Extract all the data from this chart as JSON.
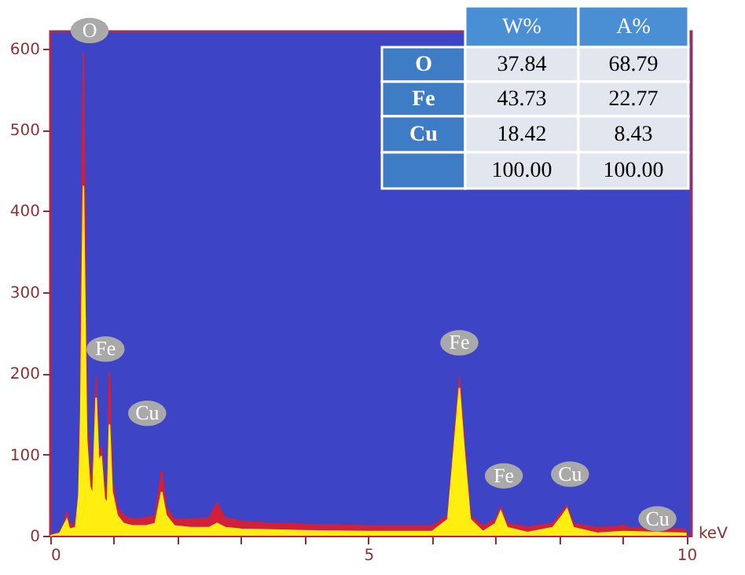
{
  "chart_data": [
    {
      "type": "area",
      "xlabel": "keV",
      "xlim": [
        0,
        10.08
      ],
      "ylim": [
        0,
        621
      ],
      "xticks": [
        0,
        {
          "value": 1,
          "label": null
        },
        {
          "value": 2,
          "label": null
        },
        {
          "value": 3,
          "label": null
        },
        {
          "value": 4,
          "label": null
        },
        5,
        {
          "value": 6,
          "label": null
        },
        {
          "value": 7,
          "label": null
        },
        {
          "value": 8,
          "label": null
        },
        {
          "value": 9,
          "label": null
        },
        10
      ],
      "yticks": [
        0,
        100,
        200,
        300,
        400,
        500,
        600
      ],
      "grid": false,
      "series": [
        {
          "color": "#d0203a",
          "x": [
            0,
            0.15,
            0.22,
            0.26,
            0.3,
            0.38,
            0.44,
            0.47,
            0.5,
            0.52,
            0.54,
            0.57,
            0.62,
            0.67,
            0.72,
            0.76,
            0.8,
            0.85,
            0.9,
            0.93,
            0.97,
            1.05,
            1.15,
            1.3,
            1.5,
            1.65,
            1.75,
            1.82,
            1.95,
            2.2,
            2.5,
            2.62,
            2.75,
            3.0,
            3.5,
            4.0,
            4.5,
            5.0,
            5.5,
            6.0,
            6.25,
            6.35,
            6.43,
            6.5,
            6.6,
            6.8,
            7.0,
            7.08,
            7.18,
            7.5,
            7.9,
            8.05,
            8.12,
            8.22,
            8.6,
            8.9,
            9.0,
            9.1,
            9.5,
            10.0
          ],
          "values": [
            0,
            5,
            15,
            30,
            15,
            12,
            40,
            150,
            420,
            595,
            420,
            150,
            80,
            70,
            195,
            100,
            110,
            60,
            60,
            201,
            70,
            35,
            25,
            20,
            22,
            25,
            80,
            35,
            20,
            20,
            22,
            40,
            22,
            18,
            15,
            14,
            13,
            12,
            12,
            12,
            25,
            120,
            195,
            120,
            25,
            12,
            20,
            35,
            15,
            11,
            15,
            30,
            37,
            15,
            10,
            11,
            13,
            10,
            9,
            8
          ]
        },
        {
          "color": "#ffee10",
          "x": [
            0,
            0.15,
            0.26,
            0.3,
            0.4,
            0.45,
            0.48,
            0.5,
            0.52,
            0.54,
            0.57,
            0.62,
            0.67,
            0.72,
            0.76,
            0.8,
            0.85,
            0.9,
            0.93,
            0.97,
            1.05,
            1.15,
            1.3,
            1.5,
            1.65,
            1.75,
            1.82,
            1.95,
            2.2,
            2.5,
            2.62,
            2.75,
            3.0,
            4.0,
            5.0,
            6.0,
            6.25,
            6.35,
            6.43,
            6.5,
            6.6,
            6.8,
            7.0,
            7.08,
            7.18,
            7.5,
            7.9,
            8.05,
            8.12,
            8.22,
            8.6,
            9.0,
            10.0
          ],
          "values": [
            0,
            3,
            20,
            8,
            10,
            50,
            150,
            300,
            431,
            300,
            120,
            60,
            50,
            170,
            90,
            98,
            45,
            40,
            137,
            55,
            25,
            15,
            12,
            12,
            15,
            54,
            25,
            12,
            10,
            10,
            15,
            10,
            8,
            6,
            5,
            5,
            20,
            110,
            182,
            110,
            20,
            5,
            15,
            30,
            10,
            4,
            10,
            25,
            33,
            10,
            3,
            5,
            3
          ]
        }
      ],
      "annotations": [
        {
          "text": "O",
          "x": 0.52,
          "y": 595
        },
        {
          "text": "Fe",
          "x": 0.72,
          "y": 195
        },
        {
          "text": "Cu",
          "x": 0.93,
          "y": 201
        },
        {
          "text": "Fe",
          "x": 6.43,
          "y": 195
        },
        {
          "text": "Fe",
          "x": 7.08,
          "y": 35
        },
        {
          "text": "Cu",
          "x": 8.12,
          "y": 37
        },
        {
          "text": "Cu",
          "x": 9.0,
          "y": 13
        }
      ]
    },
    {
      "type": "other",
      "categories": [
        "O",
        "Fe",
        "Cu"
      ],
      "data_labels": true,
      "totals": [
        "100.00",
        "100.00"
      ],
      "series": [
        {
          "name": "W%",
          "color": "#e1e6ef",
          "values": [
            37.84,
            43.73,
            18.42
          ]
        },
        {
          "name": "A%",
          "color": "#e1e6ef",
          "values": [
            68.79,
            22.77,
            8.43
          ]
        }
      ]
    }
  ]
}
